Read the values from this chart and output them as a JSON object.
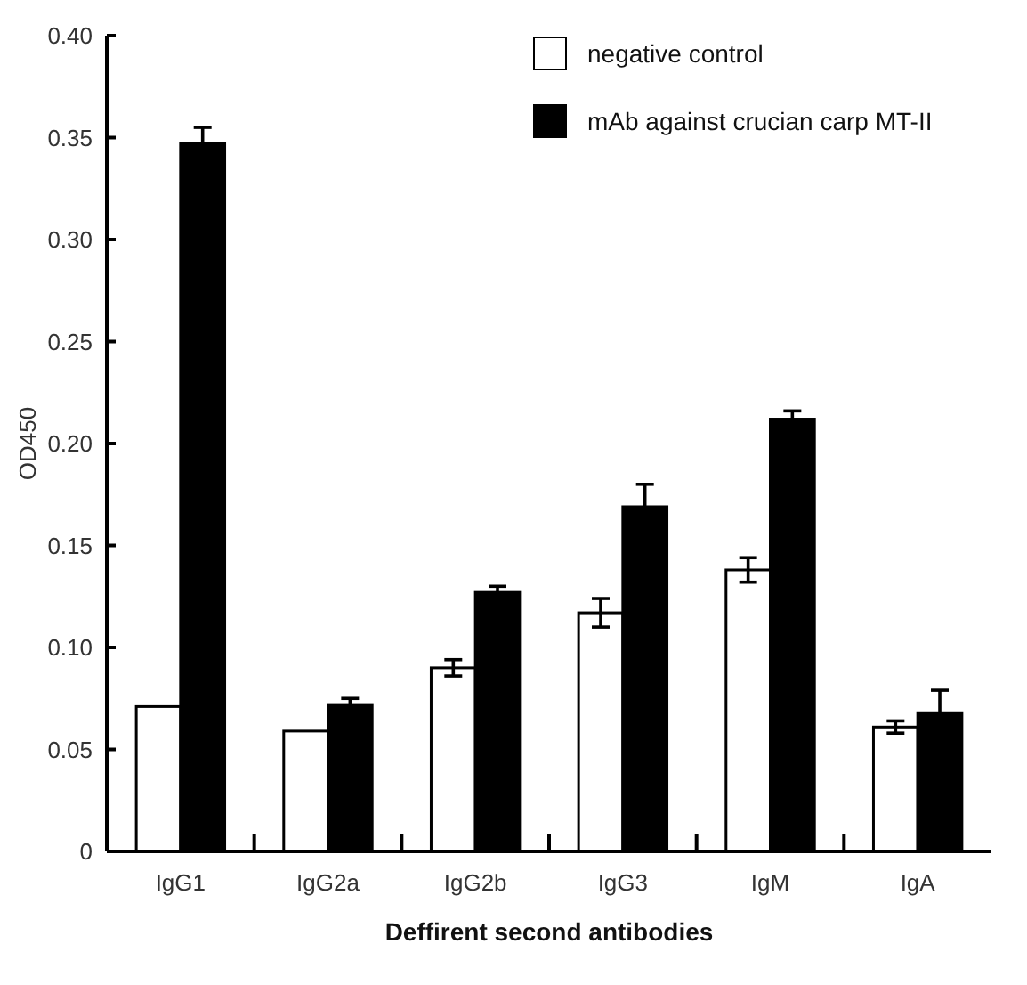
{
  "chart_data": {
    "type": "bar",
    "xlabel": "Deffirent second antibodies",
    "ylabel": "OD450",
    "categories": [
      "IgG1",
      "IgG2a",
      "IgG2b",
      "IgG3",
      "IgM",
      "IgA"
    ],
    "series": [
      {
        "name": "negative control",
        "color": "#ffffff",
        "values": [
          0.071,
          0.059,
          0.09,
          0.117,
          0.138,
          0.061
        ],
        "errors": [
          null,
          null,
          0.004,
          0.007,
          0.006,
          0.003
        ]
      },
      {
        "name": "mAb against crucian carp MT-II",
        "color": "#000000",
        "values": [
          0.347,
          0.072,
          0.127,
          0.169,
          0.212,
          0.068
        ],
        "errors": [
          0.008,
          0.003,
          0.003,
          0.011,
          0.004,
          0.011
        ]
      }
    ],
    "ylim": [
      0,
      0.4
    ],
    "yticks": [
      0,
      0.05,
      {
        "value": 0.1,
        "label": "0.10"
      },
      0.15,
      {
        "value": 0.2,
        "label": "0.20"
      },
      0.25,
      {
        "value": 0.3,
        "label": "0.30"
      },
      0.35,
      {
        "value": 0.4,
        "label": "0.40"
      }
    ],
    "grid": false,
    "legend": "top right"
  }
}
